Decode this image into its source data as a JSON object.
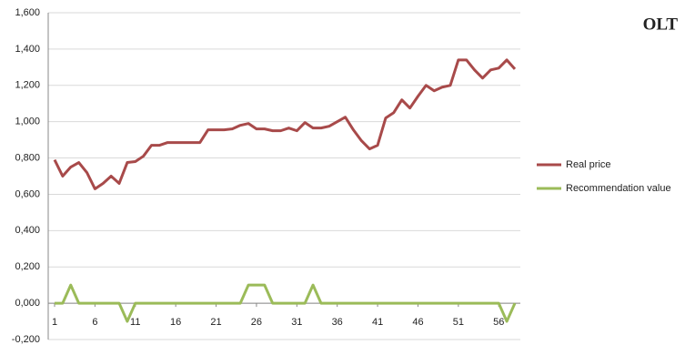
{
  "chart_data": {
    "type": "line",
    "title": "OLT",
    "x": [
      1,
      2,
      3,
      4,
      5,
      6,
      7,
      8,
      9,
      10,
      11,
      12,
      13,
      14,
      15,
      16,
      17,
      18,
      19,
      20,
      21,
      22,
      23,
      24,
      25,
      26,
      27,
      28,
      29,
      30,
      31,
      32,
      33,
      34,
      35,
      36,
      37,
      38,
      39,
      40,
      41,
      42,
      43,
      44,
      45,
      46,
      47,
      48,
      49,
      50,
      51,
      52,
      53,
      54,
      55,
      56,
      57,
      58
    ],
    "xlim": [
      1,
      58
    ],
    "xticks": [
      1,
      6,
      11,
      16,
      21,
      26,
      31,
      36,
      41,
      46,
      51,
      56
    ],
    "ylim": [
      -0.2,
      1.6
    ],
    "yticks": [
      {
        "value": -0.2,
        "label": "-0,200"
      },
      {
        "value": 0,
        "label": "0,000"
      },
      {
        "value": 0.2,
        "label": "0,200"
      },
      {
        "value": 0.4,
        "label": "0,400"
      },
      {
        "value": 0.6,
        "label": "0,600"
      },
      {
        "value": 0.8,
        "label": "0,800"
      },
      {
        "value": 1.0,
        "label": "1,000"
      },
      {
        "value": 1.2,
        "label": "1,200"
      },
      {
        "value": 1.4,
        "label": "1,400"
      },
      {
        "value": 1.6,
        "label": "1,600"
      }
    ],
    "grid": true,
    "legend": "right",
    "series": [
      {
        "name": "Real price",
        "color": "#a84a4a",
        "values": [
          0.79,
          0.7,
          0.75,
          0.775,
          0.72,
          0.63,
          0.66,
          0.7,
          0.66,
          0.775,
          0.78,
          0.81,
          0.87,
          0.87,
          0.885,
          0.885,
          0.885,
          0.885,
          0.885,
          0.955,
          0.955,
          0.955,
          0.96,
          0.98,
          0.99,
          0.96,
          0.96,
          0.95,
          0.95,
          0.965,
          0.95,
          0.995,
          0.965,
          0.965,
          0.975,
          1.0,
          1.025,
          0.955,
          0.895,
          0.85,
          0.87,
          1.02,
          1.05,
          1.12,
          1.075,
          1.14,
          1.2,
          1.17,
          1.19,
          1.2,
          1.34,
          1.34,
          1.285,
          1.24,
          1.285,
          1.295,
          1.34,
          1.29
        ]
      },
      {
        "name": "Recommendation value",
        "color": "#9bbb59",
        "values": [
          0,
          0,
          0.1,
          0,
          0,
          0,
          0,
          0,
          0,
          -0.1,
          0,
          0,
          0,
          0,
          0,
          0,
          0,
          0,
          0,
          0,
          0,
          0,
          0,
          0,
          0.1,
          0.1,
          0.1,
          0,
          0,
          0,
          0,
          0,
          0.1,
          0,
          0,
          0,
          0,
          0,
          0,
          0,
          0,
          0,
          0,
          0,
          0,
          0,
          0,
          0,
          0,
          0,
          0,
          0,
          0,
          0,
          0,
          0,
          -0.1,
          0
        ]
      }
    ]
  }
}
